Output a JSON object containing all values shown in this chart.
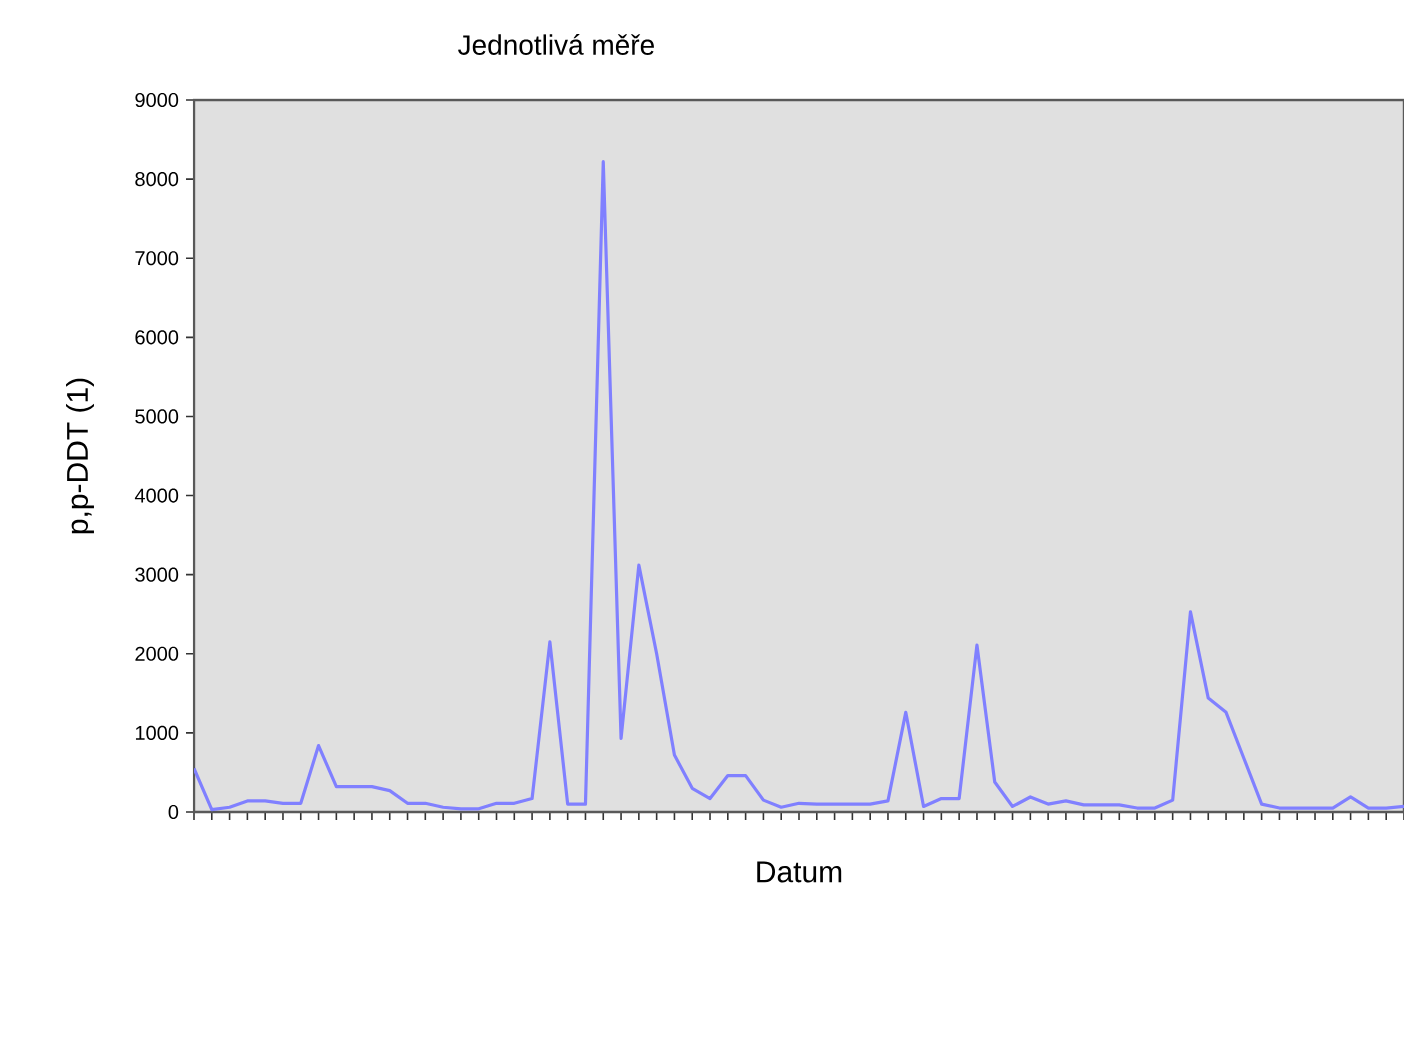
{
  "chart_data": {
    "type": "line",
    "title": "Jednotlivá měře",
    "xlabel": "Datum",
    "ylabel": "p,p-DDT (1)",
    "categories": [
      null,
      null,
      null,
      null,
      null,
      null,
      null,
      null,
      null,
      null,
      null,
      null,
      null,
      null,
      null,
      null,
      null,
      null,
      null,
      null,
      null,
      null,
      null,
      null,
      null,
      null,
      null,
      null,
      null,
      null,
      null,
      null,
      null,
      null,
      null,
      null,
      null,
      null,
      null,
      null,
      null,
      null,
      null,
      null,
      null,
      null,
      null,
      null,
      null,
      null,
      null,
      null,
      null,
      null,
      null,
      null,
      null,
      null,
      null,
      null,
      null,
      null,
      null,
      null,
      null,
      null,
      null,
      null,
      null
    ],
    "series": [
      {
        "color": "#8080ff",
        "values": [
          550,
          30,
          60,
          140,
          140,
          110,
          110,
          840,
          320,
          320,
          320,
          270,
          110,
          110,
          60,
          40,
          40,
          110,
          110,
          170,
          2150,
          100,
          100,
          8220,
          930,
          3120,
          2000,
          720,
          300,
          170,
          460,
          460,
          150,
          60,
          110,
          100,
          100,
          100,
          100,
          140,
          1260,
          70,
          170,
          170,
          2110,
          380,
          70,
          190,
          100,
          140,
          90,
          90,
          90,
          50,
          50,
          150,
          2530,
          1440,
          1260,
          680,
          100,
          50,
          50,
          50,
          50,
          190,
          50,
          50,
          70
        ]
      }
    ],
    "ylim": [
      0,
      9000
    ],
    "yticks": [
      0,
      1000,
      2000,
      3000,
      4000,
      5000,
      6000,
      7000,
      8000,
      9000
    ],
    "grid": false,
    "marker": "none",
    "line_style": "solid"
  }
}
